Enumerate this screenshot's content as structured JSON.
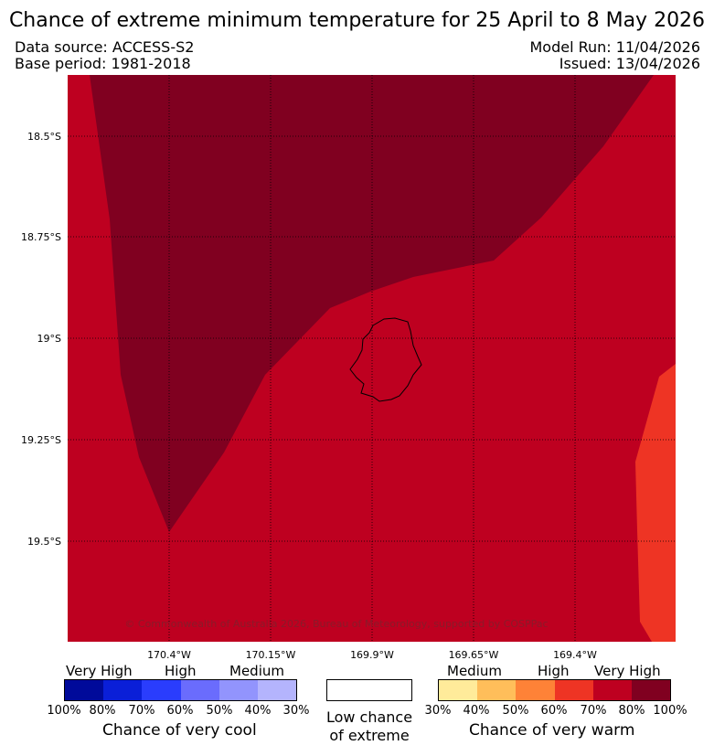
{
  "title": "Chance of extreme minimum temperature for 25 April to 8 May 2026",
  "meta": {
    "data_source": "Data source: ACCESS-S2",
    "base_period": "Base period: 1981-2018",
    "model_run": "Model Run: 11/04/2026",
    "issued": "Issued: 13/04/2026"
  },
  "map": {
    "lat_labels": [
      "18.5°S",
      "18.75°S",
      "19°S",
      "19.25°S",
      "19.5°S"
    ],
    "lon_labels": [
      "170.4°W",
      "170.15°W",
      "169.9°W",
      "169.65°W",
      "169.4°W"
    ],
    "copyright": "© Commonwealth of Australia 2026, Bureau of Meteorology, supported by COSPPac",
    "colors": {
      "very_high_warm": "#800020",
      "high_warm_80": "#be0020",
      "high_warm_60": "#ee3424"
    }
  },
  "legend": {
    "cool": {
      "categories": [
        "Very High",
        "High",
        "Medium"
      ],
      "ticks": [
        "100%",
        "80%",
        "70%",
        "60%",
        "50%",
        "40%",
        "30%"
      ],
      "colors": [
        "#000a9a",
        "#0a1fd8",
        "#2a3dfd",
        "#6a6cfd",
        "#9294fd",
        "#b4b4fd"
      ],
      "label": "Chance of very cool"
    },
    "low": {
      "line1": "Low chance",
      "line2": "of extreme"
    },
    "warm": {
      "categories": [
        "Medium",
        "High",
        "Very High"
      ],
      "ticks": [
        "30%",
        "40%",
        "50%",
        "60%",
        "70%",
        "80%",
        "100%"
      ],
      "colors": [
        "#ffeb9a",
        "#ffbe5a",
        "#fe8237",
        "#ee3424",
        "#be0020",
        "#800020"
      ],
      "label": "Chance of very warm"
    }
  }
}
